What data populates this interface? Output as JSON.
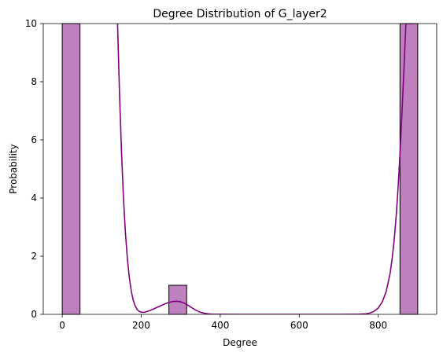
{
  "chart_data": {
    "type": "bar",
    "title": "Degree Distribution of G_layer2",
    "xlabel": "Degree",
    "ylabel": "Probability",
    "xlim": [
      -48,
      948
    ],
    "ylim": [
      0,
      10
    ],
    "xticks": [
      0,
      200,
      400,
      600,
      800
    ],
    "yticks": [
      0,
      2,
      4,
      6,
      8,
      10
    ],
    "bars": [
      {
        "x0": 0,
        "x1": 45,
        "value": 10
      },
      {
        "x0": 270,
        "x1": 315,
        "value": 1
      },
      {
        "x0": 855,
        "x1": 900,
        "value": 10
      }
    ],
    "bar_color": "#bf80bf",
    "bar_edge_color": "#000000",
    "kde_color": "#800080",
    "kde": {
      "x": [
        140,
        145,
        150,
        155,
        160,
        165,
        170,
        175,
        180,
        185,
        190,
        195,
        200,
        205,
        210,
        220,
        230,
        240,
        250,
        260,
        270,
        280,
        290,
        300,
        310,
        320,
        330,
        340,
        350,
        360,
        370,
        380,
        400,
        450,
        500,
        600,
        700,
        750,
        770,
        780,
        790,
        800,
        810,
        820,
        830,
        835,
        840,
        845,
        850,
        855,
        860,
        865,
        870,
        875,
        880,
        885,
        890
      ],
      "y": [
        10.0,
        7.6,
        5.6,
        4.0,
        2.8,
        1.9,
        1.25,
        0.78,
        0.47,
        0.28,
        0.16,
        0.1,
        0.075,
        0.07,
        0.08,
        0.12,
        0.18,
        0.24,
        0.3,
        0.36,
        0.41,
        0.44,
        0.45,
        0.43,
        0.38,
        0.3,
        0.21,
        0.13,
        0.07,
        0.035,
        0.015,
        0.006,
        0.001,
        0.0,
        0.0,
        0.0,
        0.0,
        0.005,
        0.02,
        0.05,
        0.11,
        0.22,
        0.42,
        0.78,
        1.4,
        1.9,
        2.5,
        3.3,
        4.3,
        5.5,
        6.9,
        8.4,
        10.0,
        10.0,
        10.0,
        10.0,
        10.0
      ]
    }
  }
}
